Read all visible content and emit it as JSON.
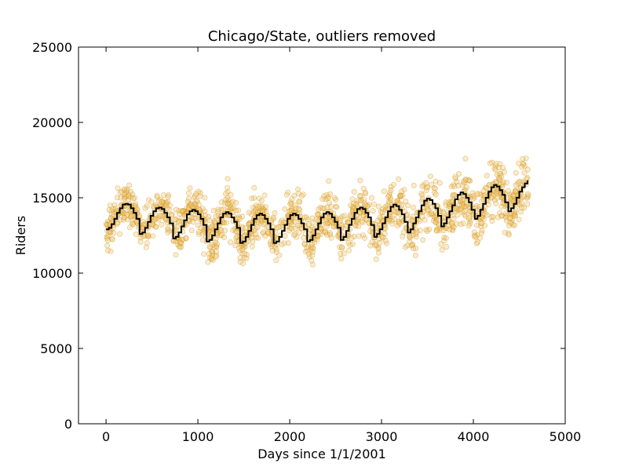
{
  "colors": {
    "scatter_fill": "#f5c56b",
    "scatter_edge": "#b8860b",
    "trend_line": "#000000",
    "background": "#ffffff"
  },
  "chart_data": {
    "type": "scatter",
    "title": "Chicago/State, outliers removed",
    "xlabel": "Days since 1/1/2001",
    "ylabel": "Riders",
    "xlim": [
      -300,
      5000
    ],
    "ylim": [
      0,
      25000
    ],
    "xticks": [
      0,
      1000,
      2000,
      3000,
      4000,
      5000
    ],
    "yticks": [
      0,
      5000,
      10000,
      15000,
      20000,
      25000
    ],
    "xtick_labels": [
      "0",
      "1000",
      "2000",
      "3000",
      "4000",
      "5000"
    ],
    "ytick_labels": [
      "0",
      "5000",
      "10000",
      "15000",
      "20000",
      "25000"
    ],
    "grid": false,
    "legend": "none",
    "x_range": [
      0,
      4600
    ],
    "series": [
      {
        "kind": "scatter",
        "description_points_approx": 1500,
        "seasonal_period_days": 365,
        "samples": [
          [
            0,
            12200
          ],
          [
            50,
            12900
          ],
          [
            100,
            13100
          ],
          [
            180,
            15200
          ],
          [
            250,
            14800
          ],
          [
            330,
            13600
          ],
          [
            400,
            12500
          ],
          [
            500,
            13500
          ],
          [
            600,
            14700
          ],
          [
            700,
            14200
          ],
          [
            750,
            12000
          ],
          [
            850,
            13300
          ],
          [
            950,
            14300
          ],
          [
            1050,
            14300
          ],
          [
            1110,
            11800
          ],
          [
            1200,
            12900
          ],
          [
            1350,
            14300
          ],
          [
            1450,
            12900
          ],
          [
            1500,
            11800
          ],
          [
            1600,
            13300
          ],
          [
            1700,
            14800
          ],
          [
            1800,
            13300
          ],
          [
            1850,
            11700
          ],
          [
            1950,
            13500
          ],
          [
            2050,
            15200
          ],
          [
            2150,
            12900
          ],
          [
            2200,
            11700
          ],
          [
            2300,
            12700
          ],
          [
            2400,
            13600
          ],
          [
            2500,
            12700
          ],
          [
            2550,
            11000
          ],
          [
            2650,
            12000
          ],
          [
            2800,
            13900
          ],
          [
            2900,
            12300
          ],
          [
            2950,
            12300
          ],
          [
            3050,
            13400
          ],
          [
            3150,
            14200
          ],
          [
            3250,
            13800
          ],
          [
            3300,
            12400
          ],
          [
            3400,
            14000
          ],
          [
            3500,
            15000
          ],
          [
            3600,
            14400
          ],
          [
            3650,
            12900
          ],
          [
            3750,
            14400
          ],
          [
            3900,
            16000
          ],
          [
            4000,
            15000
          ],
          [
            4050,
            13700
          ],
          [
            4150,
            15500
          ],
          [
            4250,
            16300
          ],
          [
            4350,
            15400
          ],
          [
            4400,
            13700
          ],
          [
            4500,
            15500
          ],
          [
            4600,
            16200
          ]
        ]
      },
      {
        "kind": "line",
        "style": "step",
        "x": [
          0,
          30,
          60,
          90,
          120,
          150,
          180,
          210,
          240,
          270,
          300,
          330,
          365,
          395,
          425,
          455,
          485,
          515,
          545,
          575,
          605,
          635,
          665,
          695,
          730,
          760,
          790,
          820,
          850,
          880,
          910,
          940,
          970,
          1000,
          1030,
          1060,
          1095,
          1125,
          1155,
          1185,
          1215,
          1245,
          1275,
          1305,
          1335,
          1365,
          1395,
          1425,
          1460,
          1490,
          1520,
          1550,
          1580,
          1610,
          1640,
          1670,
          1700,
          1730,
          1760,
          1790,
          1825,
          1855,
          1885,
          1915,
          1945,
          1975,
          2005,
          2035,
          2065,
          2095,
          2125,
          2155,
          2190,
          2220,
          2250,
          2280,
          2310,
          2340,
          2370,
          2400,
          2430,
          2460,
          2490,
          2520,
          2555,
          2585,
          2615,
          2645,
          2675,
          2705,
          2735,
          2765,
          2795,
          2825,
          2855,
          2885,
          2920,
          2950,
          2980,
          3010,
          3040,
          3070,
          3100,
          3130,
          3160,
          3190,
          3220,
          3250,
          3285,
          3315,
          3345,
          3375,
          3405,
          3435,
          3465,
          3495,
          3525,
          3555,
          3585,
          3615,
          3650,
          3680,
          3710,
          3740,
          3770,
          3800,
          3830,
          3860,
          3890,
          3920,
          3950,
          3980,
          4015,
          4045,
          4075,
          4105,
          4135,
          4165,
          4195,
          4225,
          4255,
          4285,
          4315,
          4345,
          4380,
          4410,
          4440,
          4470,
          4500,
          4530,
          4560,
          4590
        ],
        "y": [
          12900,
          13000,
          13250,
          13600,
          14000,
          14300,
          14550,
          14600,
          14550,
          14300,
          14000,
          13600,
          12600,
          12700,
          13000,
          13400,
          13800,
          14100,
          14300,
          14350,
          14250,
          14000,
          13700,
          13300,
          12300,
          12400,
          12700,
          13100,
          13500,
          13900,
          14100,
          14200,
          14100,
          13900,
          13600,
          13200,
          12100,
          12200,
          12500,
          12900,
          13300,
          13700,
          13950,
          14050,
          13950,
          13700,
          13400,
          13000,
          12000,
          12100,
          12400,
          12800,
          13200,
          13600,
          13850,
          13950,
          13850,
          13600,
          13300,
          12900,
          12000,
          12100,
          12400,
          12800,
          13200,
          13600,
          13850,
          13950,
          13850,
          13600,
          13300,
          12900,
          12100,
          12200,
          12500,
          12900,
          13300,
          13700,
          13950,
          14050,
          13950,
          13700,
          13400,
          13000,
          12200,
          12400,
          12800,
          13200,
          13600,
          14000,
          14250,
          14350,
          14250,
          14000,
          13700,
          13200,
          12400,
          12600,
          12900,
          13300,
          13700,
          14100,
          14400,
          14550,
          14450,
          14200,
          13900,
          13400,
          12700,
          12900,
          13300,
          13700,
          14100,
          14500,
          14800,
          14950,
          14850,
          14600,
          14300,
          13800,
          13100,
          13300,
          13700,
          14100,
          14500,
          14900,
          15200,
          15350,
          15250,
          15000,
          14700,
          14200,
          13600,
          13800,
          14200,
          14600,
          15000,
          15400,
          15700,
          15850,
          15750,
          15500,
          15200,
          14700,
          14100,
          14300,
          14600,
          15000,
          15400,
          15700,
          15950,
          16100
        ]
      }
    ]
  }
}
